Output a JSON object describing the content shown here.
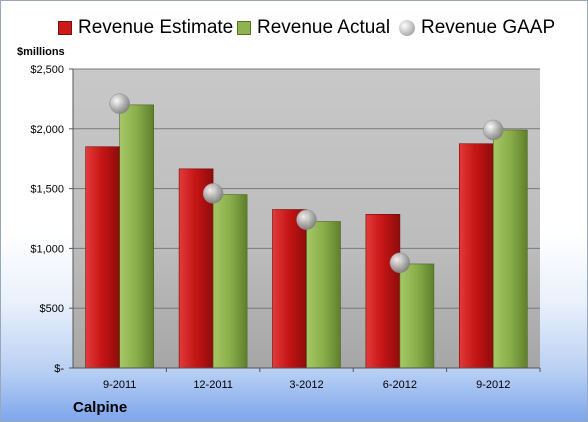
{
  "chart_data": {
    "type": "bar",
    "categories": [
      "9-2011",
      "12-2011",
      "3-2012",
      "6-2012",
      "9-2012"
    ],
    "series": [
      {
        "name": "Revenue Estimate",
        "type": "bar",
        "color": "#cc1a1a",
        "values": [
          1850,
          1665,
          1325,
          1285,
          1875
        ]
      },
      {
        "name": "Revenue Actual",
        "type": "bar",
        "color": "#8fb34f",
        "values": [
          2200,
          1450,
          1225,
          870,
          1990
        ]
      },
      {
        "name": "Revenue GAAP",
        "type": "scatter",
        "color": "#a9a9a9",
        "values": [
          2210,
          1460,
          1240,
          880,
          1990
        ]
      }
    ],
    "ylabel": "$millions",
    "yticks": [
      "$-",
      "$500",
      "$1,000",
      "$1,500",
      "$2,000",
      "$2,500"
    ],
    "ylim": [
      0,
      2500
    ],
    "grid": true,
    "legend": "top"
  },
  "footer": {
    "company": "Calpine"
  }
}
